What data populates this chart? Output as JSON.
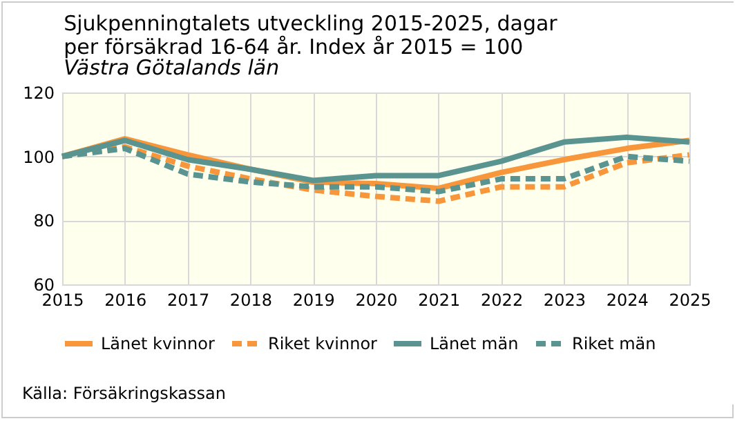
{
  "chart_data": {
    "type": "line",
    "title": "Sjukpenningtalets utveckling 2015-2025, dagar per försäkrad 16-64 år. Index år 2015 = 100",
    "subtitle": "Västra Götalands län",
    "x": [
      2015,
      2016,
      2017,
      2018,
      2019,
      2020,
      2021,
      2022,
      2023,
      2024,
      2025
    ],
    "xlim": [
      2015,
      2025
    ],
    "xticks": [
      2015,
      2016,
      2017,
      2018,
      2019,
      2020,
      2021,
      2022,
      2023,
      2024,
      2025
    ],
    "ylim": [
      60,
      120
    ],
    "yticks": [
      60,
      80,
      100,
      120
    ],
    "grid": true,
    "legend": "bottom",
    "marker": "none",
    "series": [
      {
        "name": "Länet kvinnor",
        "color": "#f7963a",
        "line_style": "solid",
        "values": [
          100,
          105.5,
          100.5,
          96,
          92,
          91.5,
          90,
          95,
          99,
          102.5,
          105
        ]
      },
      {
        "name": "Riket kvinnor",
        "color": "#f7963a",
        "line_style": "dashed",
        "values": [
          100,
          103,
          97,
          93,
          89.5,
          87.5,
          86,
          90.5,
          90.5,
          98,
          100.5
        ]
      },
      {
        "name": "Länet män",
        "color": "#5a9490",
        "line_style": "solid",
        "values": [
          100,
          105,
          99,
          96,
          92.5,
          94,
          94,
          98.5,
          104.5,
          106,
          104.5
        ]
      },
      {
        "name": "Riket män",
        "color": "#5a9490",
        "line_style": "dashed",
        "values": [
          100,
          102.5,
          94.5,
          92,
          90.5,
          90.5,
          89,
          93,
          93,
          100,
          98.5
        ]
      }
    ],
    "annotations": [
      "Källa: Försäkringskassan"
    ]
  }
}
